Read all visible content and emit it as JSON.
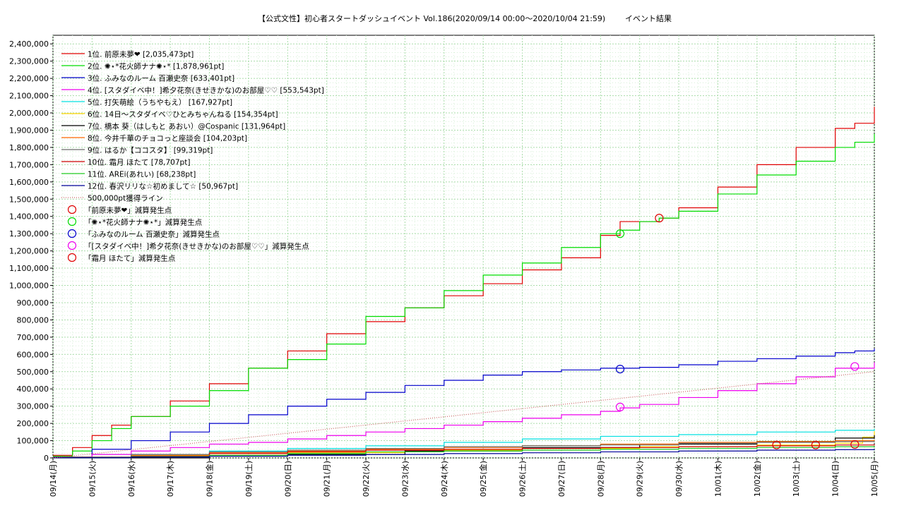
{
  "chart_data": {
    "type": "line",
    "title": "【公式文性】初心者スタートダッシュイベント Vol.186(2020/09/14 00:00〜2020/10/04 21:59)",
    "subtitle": "イベント結果",
    "xlabel": "",
    "ylabel": "",
    "x_day_range": [
      0,
      21
    ],
    "ylim": [
      0,
      2450000
    ],
    "grid": true,
    "legend_position": "top-left",
    "x_ticks": [
      "09/14(月)",
      "09/15(火)",
      "09/16(水)",
      "09/17(木)",
      "09/18(金)",
      "09/19(土)",
      "09/20(日)",
      "09/21(月)",
      "09/22(火)",
      "09/23(水)",
      "09/24(木)",
      "09/25(金)",
      "09/26(土)",
      "09/27(日)",
      "09/28(月)",
      "09/29(火)",
      "09/30(水)",
      "10/01(木)",
      "10/02(金)",
      "10/03(土)",
      "10/04(日)",
      "10/05(月)"
    ],
    "y_ticks": [
      "0",
      "100,000",
      "200,000",
      "300,000",
      "400,000",
      "500,000",
      "600,000",
      "700,000",
      "800,000",
      "900,000",
      "1,000,000",
      "1,100,000",
      "1,200,000",
      "1,300,000",
      "1,400,000",
      "1,500,000",
      "1,600,000",
      "1,700,000",
      "1,800,000",
      "1,900,000",
      "2,000,000",
      "2,100,000",
      "2,200,000",
      "2,300,000",
      "2,400,000"
    ],
    "series": [
      {
        "name": "1位. 前原未夢❤ [2,035,473pt]",
        "color": "#e00000",
        "kind": "step",
        "x": [
          0,
          0.5,
          1,
          1.5,
          2,
          3,
          4,
          5,
          6,
          7,
          8,
          9,
          10,
          11,
          12,
          13,
          14,
          14.5,
          15,
          15.5,
          16,
          17,
          18,
          19,
          20,
          20.5,
          21
        ],
        "values": [
          15000,
          60000,
          130000,
          190000,
          240000,
          330000,
          430000,
          520000,
          620000,
          720000,
          790000,
          870000,
          940000,
          1010000,
          1090000,
          1160000,
          1290000,
          1370000,
          1370000,
          1390000,
          1450000,
          1570000,
          1700000,
          1800000,
          1910000,
          1940000,
          2035473
        ]
      },
      {
        "name": "2位. ✺⋆*花火師ナナ✺⋆* [1,878,961pt]",
        "color": "#00dd00",
        "kind": "step",
        "x": [
          0,
          0.5,
          1,
          1.5,
          2,
          3,
          4,
          5,
          6,
          7,
          8,
          9,
          10,
          11,
          12,
          13,
          14,
          14.5,
          15,
          15.5,
          16,
          17,
          18,
          19,
          20,
          20.5,
          21
        ],
        "values": [
          10000,
          40000,
          100000,
          170000,
          240000,
          300000,
          390000,
          520000,
          570000,
          660000,
          820000,
          870000,
          970000,
          1060000,
          1130000,
          1220000,
          1300000,
          1320000,
          1370000,
          1390000,
          1430000,
          1530000,
          1640000,
          1720000,
          1800000,
          1830000,
          1878961
        ]
      },
      {
        "name": "3位. ふみなのルーム 百瀬史奈 [633,401pt]",
        "color": "#0000cc",
        "kind": "step",
        "x": [
          0,
          1,
          2,
          3,
          4,
          5,
          6,
          7,
          8,
          9,
          10,
          11,
          12,
          13,
          14,
          15,
          16,
          17,
          18,
          19,
          20,
          20.5,
          21
        ],
        "values": [
          5000,
          50000,
          100000,
          150000,
          200000,
          250000,
          300000,
          340000,
          380000,
          420000,
          450000,
          480000,
          500000,
          510000,
          520000,
          525000,
          540000,
          560000,
          575000,
          590000,
          610000,
          620000,
          633401
        ]
      },
      {
        "name": "4位. [スタダイベ中！]希夕花奈(きせきかな)のお部屋♡♡ [553,543pt]",
        "color": "#ee00ee",
        "kind": "step",
        "x": [
          0,
          1,
          2,
          3,
          4,
          5,
          6,
          7,
          8,
          9,
          10,
          11,
          12,
          13,
          14,
          14.5,
          15,
          16,
          17,
          18,
          19,
          20,
          21
        ],
        "values": [
          5000,
          20000,
          40000,
          60000,
          80000,
          90000,
          110000,
          130000,
          150000,
          170000,
          190000,
          210000,
          230000,
          250000,
          270000,
          290000,
          310000,
          350000,
          390000,
          430000,
          470000,
          520000,
          553543
        ]
      },
      {
        "name": "5位. 打矢萌絵（うちやもえ） [167,927pt]",
        "color": "#00e0e0",
        "kind": "step",
        "x": [
          0,
          2,
          4,
          6,
          8,
          10,
          12,
          14,
          16,
          18,
          20,
          21
        ],
        "values": [
          2000,
          20000,
          40000,
          55000,
          70000,
          90000,
          110000,
          125000,
          135000,
          150000,
          160000,
          167927
        ]
      },
      {
        "name": "6位. 14日〜スタダイベ♡ひとみちゃんねる [154,354pt]",
        "color": "#ffd400",
        "kind": "step",
        "x": [
          0,
          3,
          6,
          9,
          12,
          15,
          18,
          20,
          20.7,
          21
        ],
        "values": [
          1000,
          15000,
          30000,
          45000,
          55000,
          65000,
          75000,
          85000,
          120000,
          154354
        ]
      },
      {
        "name": "7位. 橋本 葵（はしもと あおい）@Cospanic [131,964pt]",
        "color": "#000000",
        "kind": "step",
        "x": [
          0,
          3,
          4,
          6,
          9,
          12,
          15,
          18,
          20,
          21
        ],
        "values": [
          0,
          0,
          10000,
          20000,
          40000,
          60000,
          80000,
          95000,
          115000,
          131964
        ]
      },
      {
        "name": "8位. 今井千華のチョコっと座談会 [104,203pt]",
        "color": "#ff6600",
        "kind": "step",
        "x": [
          0,
          2,
          4,
          6,
          8,
          10,
          12,
          14,
          16,
          18,
          20,
          21
        ],
        "values": [
          3000,
          15000,
          30000,
          40000,
          50000,
          60000,
          70000,
          80000,
          90000,
          95000,
          100000,
          104203
        ]
      },
      {
        "name": "9位. はるか【ココスタ】 [99,319pt]",
        "color": "#6a6a6a",
        "kind": "step",
        "x": [
          0,
          2,
          4,
          6,
          8,
          10,
          12,
          14,
          16,
          18,
          20,
          21
        ],
        "values": [
          5000,
          20000,
          35000,
          45000,
          55000,
          65000,
          70000,
          75000,
          85000,
          90000,
          95000,
          99319
        ]
      },
      {
        "name": "10位. 霜月 ほたて [78,707pt]",
        "color": "#cc0000",
        "kind": "step",
        "x": [
          0,
          2,
          4,
          6,
          8,
          10,
          12,
          14,
          16,
          18,
          20,
          21
        ],
        "values": [
          2000,
          10000,
          25000,
          35000,
          45000,
          50000,
          55000,
          60000,
          65000,
          70000,
          75000,
          78707
        ]
      },
      {
        "name": "11位. AREi(あれい) [68,238pt]",
        "color": "#22cc22",
        "kind": "step",
        "x": [
          0,
          2,
          4,
          6,
          8,
          10,
          12,
          14,
          16,
          18,
          20,
          21
        ],
        "values": [
          1000,
          8000,
          15000,
          25000,
          35000,
          40000,
          45000,
          50000,
          55000,
          60000,
          65000,
          68238
        ]
      },
      {
        "name": "12位. 春沢リリな☆初めまして☆ [50,967pt]",
        "color": "#000099",
        "kind": "step",
        "x": [
          0,
          2,
          4,
          6,
          8,
          10,
          12,
          14,
          16,
          18,
          20,
          21
        ],
        "values": [
          1000,
          5000,
          10000,
          15000,
          20000,
          25000,
          30000,
          35000,
          40000,
          45000,
          48000,
          50967
        ]
      },
      {
        "name": "500,000pt獲得ライン",
        "color": "#cc6666",
        "kind": "dotted",
        "x": [
          0,
          21
        ],
        "values": [
          0,
          500000
        ]
      }
    ],
    "markers": [
      {
        "name": "「前原未夢❤」減算発生点",
        "color": "#e00000",
        "points": [
          [
            15.5,
            1390000
          ]
        ]
      },
      {
        "name": "「✺⋆*花火師ナナ✺⋆*」減算発生点",
        "color": "#00dd00",
        "points": [
          [
            14.5,
            1300000
          ]
        ]
      },
      {
        "name": "「ふみなのルーム 百瀬史奈」減算発生点",
        "color": "#0000cc",
        "points": [
          [
            14.5,
            515000
          ]
        ]
      },
      {
        "name": "「[スタダイベ中！]希夕花奈(きせきかな)のお部屋♡♡」減算発生点",
        "color": "#ee00ee",
        "points": [
          [
            14.5,
            295000
          ],
          [
            20.5,
            530000
          ]
        ]
      },
      {
        "name": "「霜月 ほたて」減算発生点",
        "color": "#e00000",
        "points": [
          [
            18.5,
            75000
          ],
          [
            19.5,
            75000
          ],
          [
            20.5,
            78000
          ]
        ]
      }
    ]
  }
}
